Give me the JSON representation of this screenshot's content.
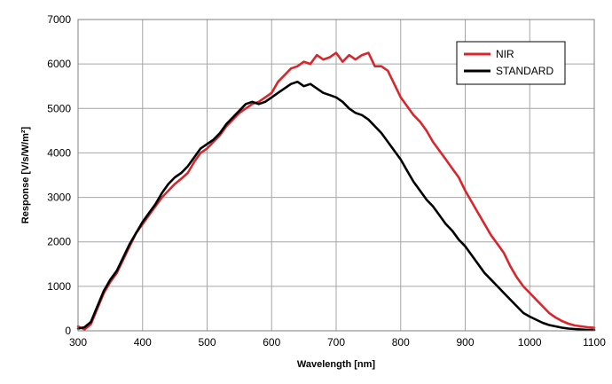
{
  "chart_data": {
    "type": "line",
    "title": "",
    "xlabel": "Wavelength [nm]",
    "ylabel": "Response [V/s/W/m²]",
    "xlim": [
      300,
      1100
    ],
    "ylim": [
      0,
      7000
    ],
    "xticks": [
      300,
      400,
      500,
      600,
      700,
      800,
      900,
      1000,
      1100
    ],
    "yticks": [
      0,
      1000,
      2000,
      3000,
      4000,
      5000,
      6000,
      7000
    ],
    "grid": true,
    "legend_position": "top-right",
    "series": [
      {
        "name": "NIR",
        "color": "#d9262c",
        "x": [
          300,
          310,
          320,
          330,
          340,
          350,
          360,
          370,
          380,
          390,
          400,
          410,
          420,
          430,
          440,
          450,
          460,
          470,
          480,
          490,
          500,
          510,
          520,
          530,
          540,
          550,
          560,
          570,
          580,
          590,
          600,
          610,
          620,
          630,
          640,
          650,
          660,
          670,
          680,
          690,
          700,
          710,
          720,
          730,
          740,
          750,
          760,
          770,
          780,
          790,
          800,
          810,
          820,
          830,
          840,
          850,
          860,
          870,
          880,
          890,
          900,
          910,
          920,
          930,
          940,
          950,
          960,
          970,
          980,
          990,
          1000,
          1010,
          1020,
          1030,
          1040,
          1050,
          1060,
          1070,
          1080,
          1090,
          1100
        ],
        "values": [
          100,
          30,
          150,
          500,
          850,
          1100,
          1300,
          1600,
          1900,
          2200,
          2400,
          2600,
          2800,
          3000,
          3150,
          3300,
          3420,
          3550,
          3800,
          4000,
          4100,
          4250,
          4400,
          4600,
          4750,
          4900,
          5000,
          5100,
          5150,
          5250,
          5350,
          5600,
          5750,
          5900,
          5950,
          6050,
          6000,
          6200,
          6100,
          6150,
          6250,
          6050,
          6200,
          6100,
          6200,
          6250,
          5950,
          5950,
          5850,
          5550,
          5250,
          5050,
          4850,
          4700,
          4500,
          4250,
          4050,
          3850,
          3650,
          3450,
          3150,
          2900,
          2650,
          2400,
          2150,
          1950,
          1750,
          1450,
          1200,
          1000,
          850,
          700,
          550,
          400,
          300,
          220,
          160,
          120,
          100,
          80,
          70
        ]
      },
      {
        "name": "STANDARD",
        "color": "#000000",
        "x": [
          300,
          310,
          320,
          330,
          340,
          350,
          360,
          370,
          380,
          390,
          400,
          410,
          420,
          430,
          440,
          450,
          460,
          470,
          480,
          490,
          500,
          510,
          520,
          530,
          540,
          550,
          560,
          570,
          580,
          590,
          600,
          610,
          620,
          630,
          640,
          650,
          660,
          670,
          680,
          690,
          700,
          710,
          720,
          730,
          740,
          750,
          760,
          770,
          780,
          790,
          800,
          810,
          820,
          830,
          840,
          850,
          860,
          870,
          880,
          890,
          900,
          910,
          920,
          930,
          940,
          950,
          960,
          970,
          980,
          990,
          1000,
          1010,
          1020,
          1030,
          1040,
          1050,
          1060,
          1070,
          1080,
          1090,
          1100
        ],
        "values": [
          50,
          80,
          200,
          550,
          900,
          1150,
          1350,
          1650,
          1950,
          2200,
          2450,
          2650,
          2850,
          3100,
          3300,
          3450,
          3550,
          3700,
          3900,
          4100,
          4200,
          4300,
          4450,
          4650,
          4800,
          4950,
          5100,
          5150,
          5100,
          5150,
          5250,
          5350,
          5450,
          5550,
          5600,
          5500,
          5550,
          5450,
          5350,
          5300,
          5250,
          5150,
          5000,
          4900,
          4850,
          4750,
          4600,
          4450,
          4250,
          4050,
          3850,
          3600,
          3350,
          3150,
          2950,
          2800,
          2600,
          2400,
          2250,
          2050,
          1900,
          1700,
          1500,
          1300,
          1150,
          1000,
          850,
          700,
          550,
          400,
          320,
          250,
          180,
          130,
          100,
          70,
          50,
          40,
          30,
          20,
          20
        ]
      }
    ]
  }
}
